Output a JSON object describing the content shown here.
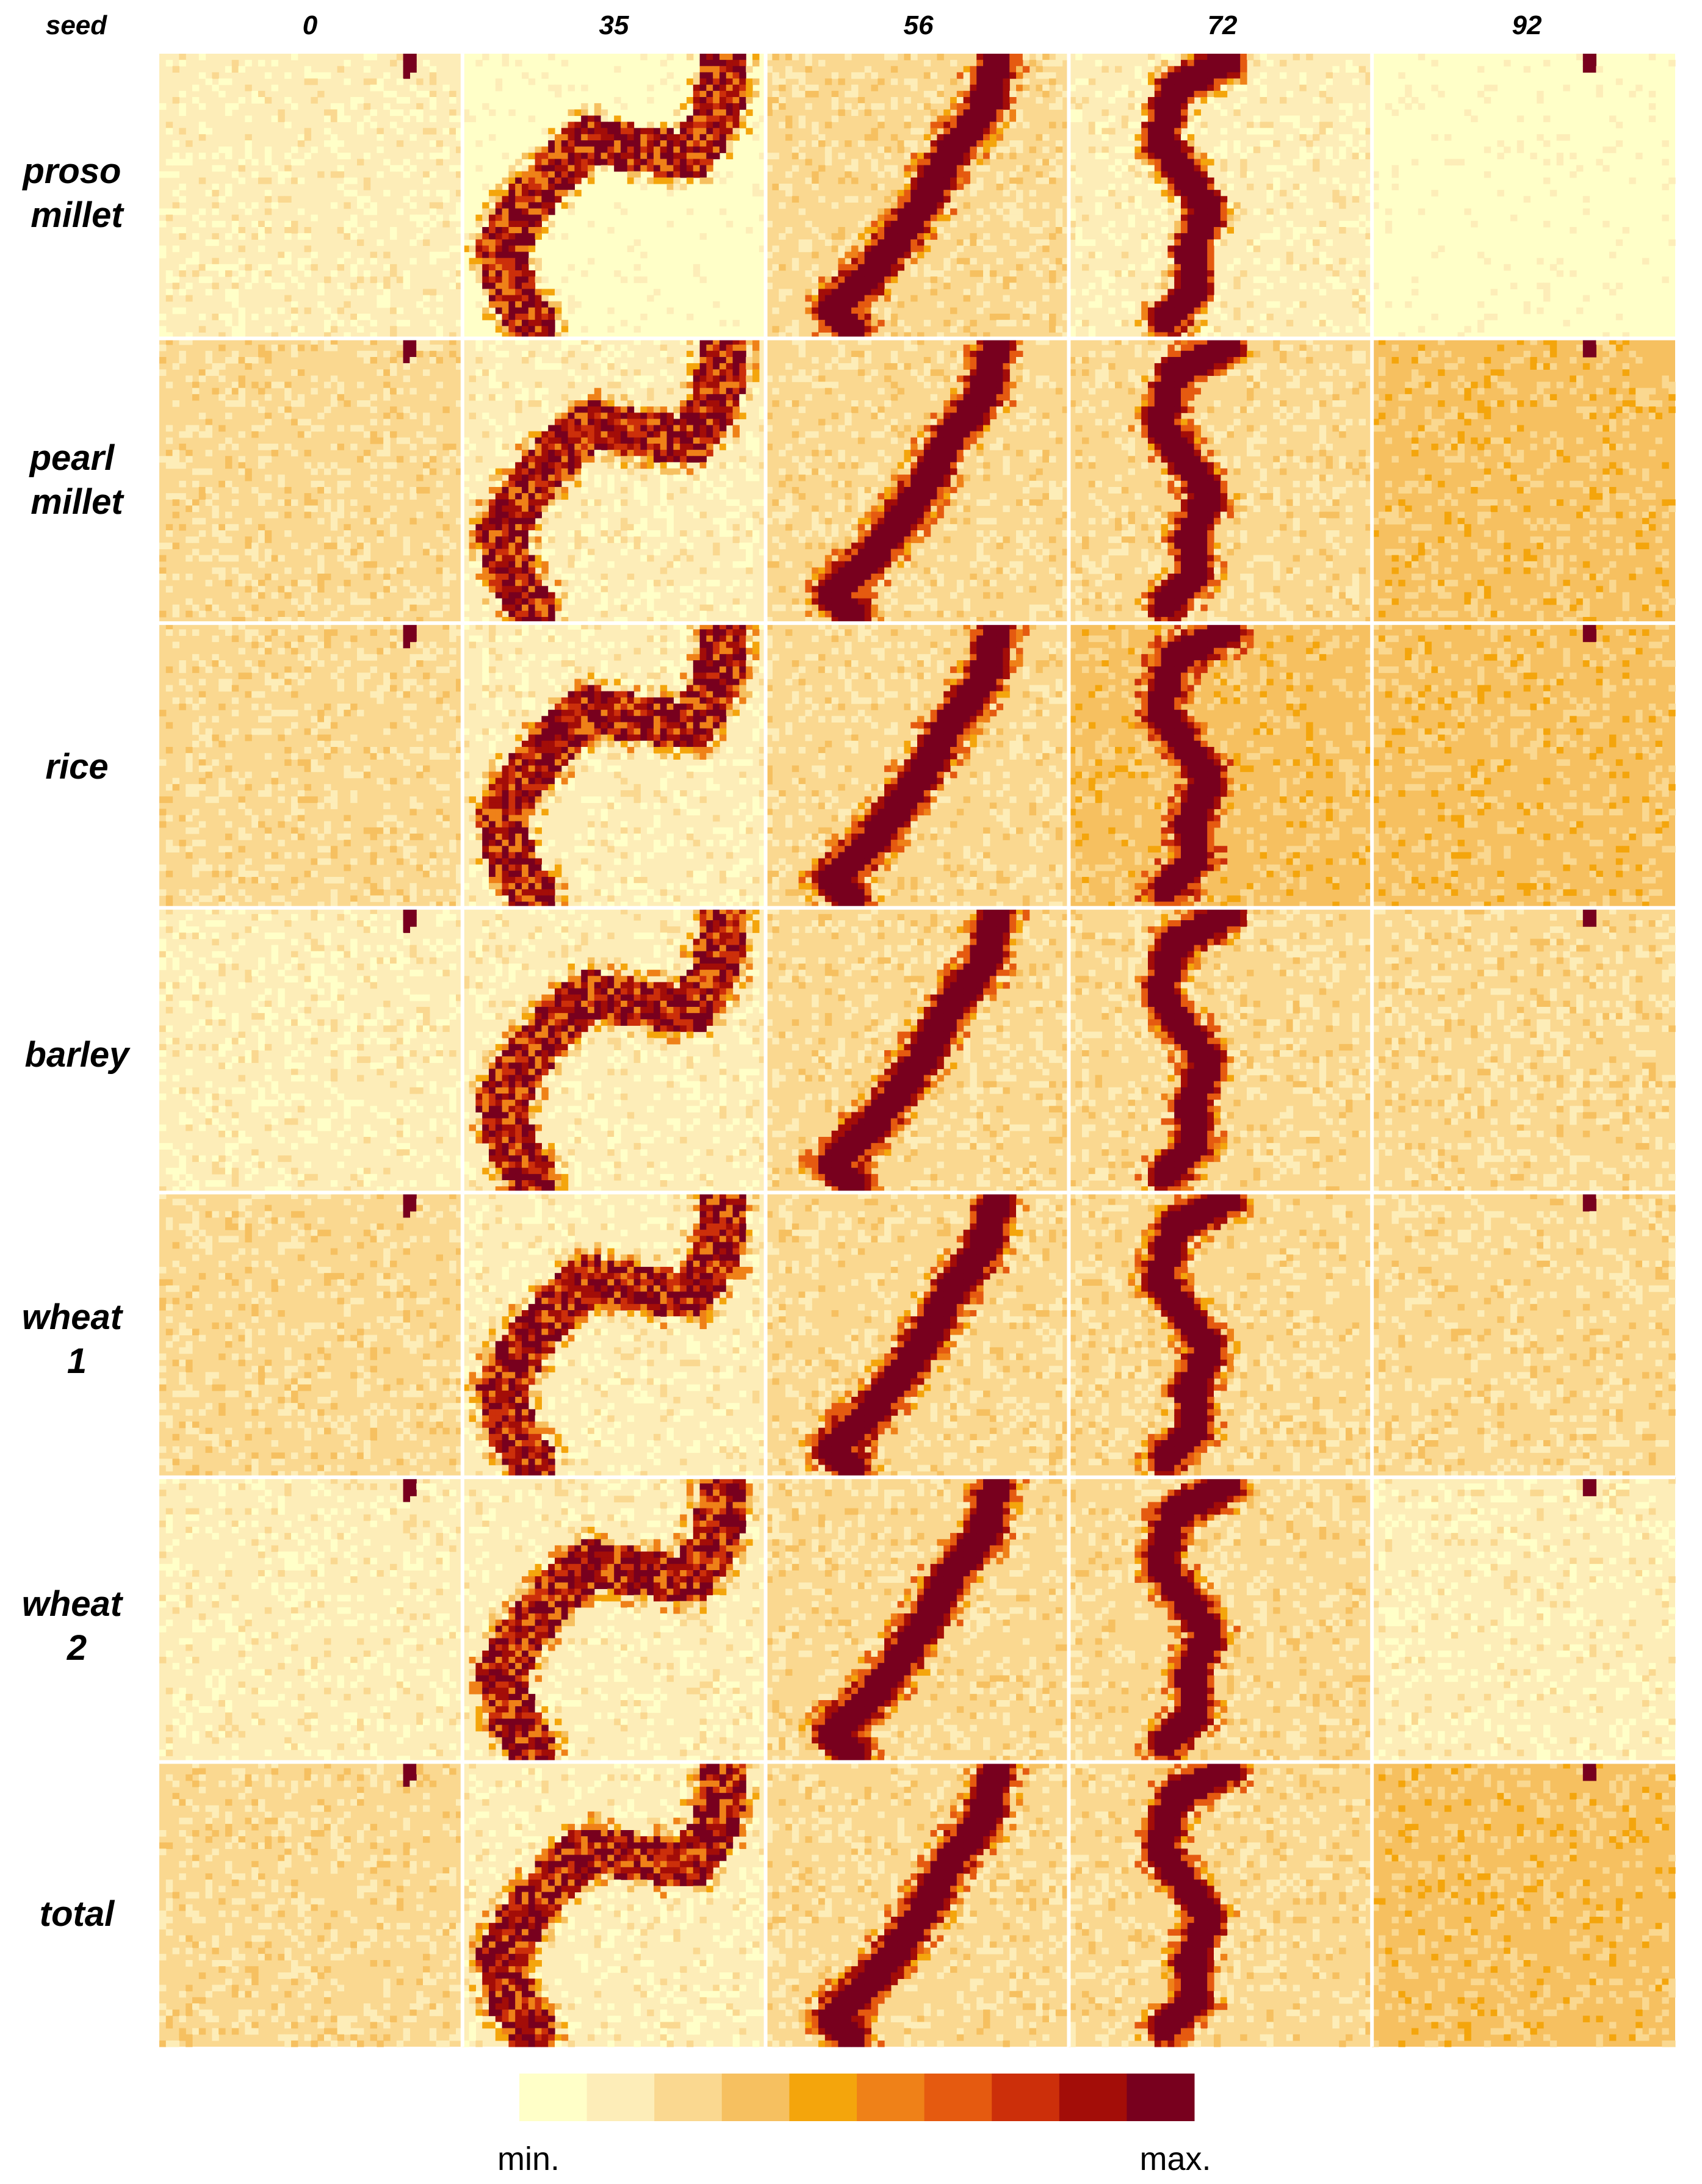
{
  "chart_data": {
    "type": "heatmap",
    "corner_label": "seed",
    "columns": [
      "0",
      "35",
      "56",
      "72",
      "92"
    ],
    "rows": [
      [
        "proso",
        "millet"
      ],
      [
        "pearl",
        "millet"
      ],
      [
        "rice"
      ],
      [
        "barley"
      ],
      [
        "wheat",
        "1"
      ],
      [
        "wheat",
        "2"
      ],
      [
        "total"
      ]
    ],
    "grid_resolution": [
      46,
      46
    ],
    "background_level_0_to_9": [
      [
        1,
        0,
        2,
        1,
        0
      ],
      [
        2,
        1,
        2,
        2,
        3
      ],
      [
        2,
        1,
        2,
        3,
        3
      ],
      [
        1,
        1,
        2,
        2,
        2
      ],
      [
        2,
        1,
        2,
        2,
        2
      ],
      [
        1,
        1,
        2,
        2,
        1
      ],
      [
        2,
        1,
        2,
        2,
        3
      ]
    ],
    "colorbar": {
      "colors": [
        "#ffffc8",
        "#fdedb8",
        "#fad890",
        "#f6c060",
        "#f4a50c",
        "#ef8118",
        "#e55a10",
        "#cc2f0a",
        "#a30d08",
        "#78001e"
      ],
      "min_label": "min.",
      "max_label": "max."
    }
  }
}
